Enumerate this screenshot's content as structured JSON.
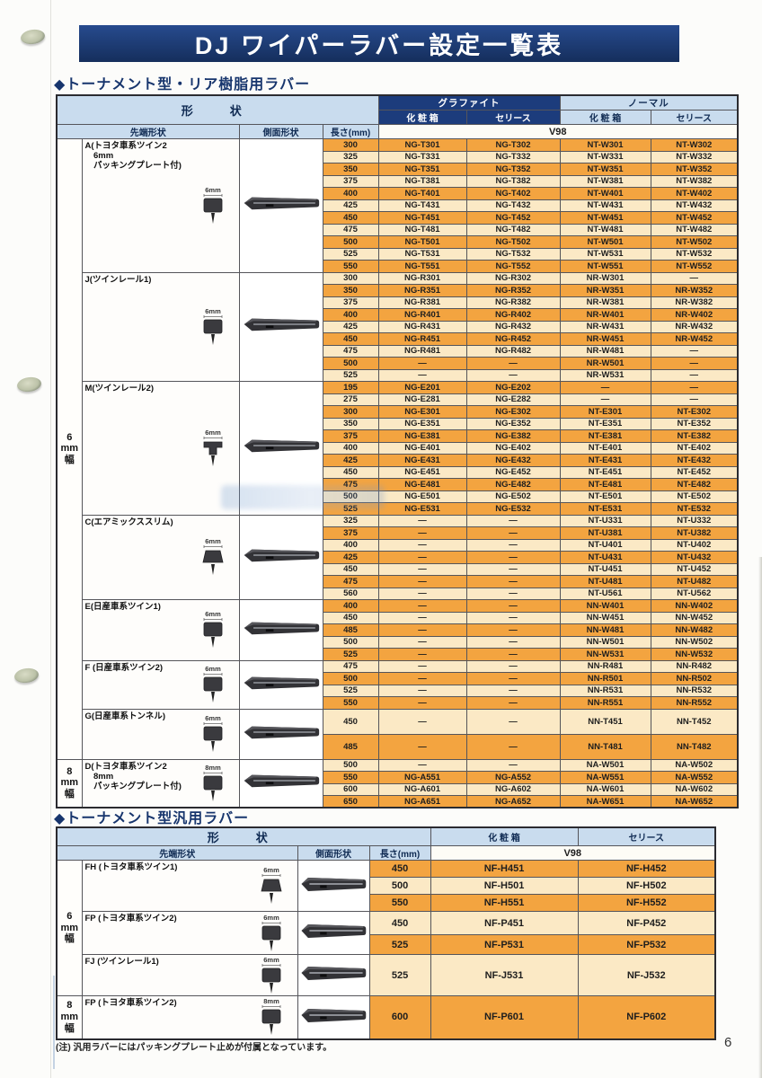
{
  "page": {
    "title": "DJ ワイパーラバー設定一覧表",
    "note": "(注) 汎用ラバーにはパッキングプレート止めが付属となっています。",
    "page_number": "6"
  },
  "colors": {
    "navy": "#1c3c7c",
    "header_blue": "#c9dcee",
    "row_orange": "#f3a440",
    "row_cream": "#fbe9c5"
  },
  "section1": {
    "heading": "◆トーナメント型・リア樹脂用ラバー",
    "headers": {
      "shape": "形　状",
      "graphite": "グラファイト",
      "normal": "ノーマル",
      "box": "化 粧 箱",
      "series": "セリース",
      "box2": "化 粧 箱",
      "series2": "セリース",
      "tip": "先端形状",
      "side": "側面形状",
      "length": "長さ(mm)",
      "v98": "V98"
    },
    "width_labels": [
      {
        "text": "6mm幅",
        "lines": [
          "6",
          "mm",
          "幅"
        ],
        "group_ids": [
          "A",
          "J",
          "M",
          "C",
          "E",
          "F",
          "G"
        ]
      },
      {
        "text": "8mm幅",
        "lines": [
          "8",
          "mm",
          "幅"
        ],
        "group_ids": [
          "D"
        ]
      }
    ],
    "groups": [
      {
        "id": "A",
        "label_lines": [
          "A(トヨタ車系ツイン2",
          "　6mm",
          "　パッキングプレート付)"
        ],
        "size_label": "6mm",
        "tip_shape": "square",
        "rows": [
          [
            "300",
            "NG-T301",
            "NG-T302",
            "NT-W301",
            "NT-W302"
          ],
          [
            "325",
            "NG-T331",
            "NG-T332",
            "NT-W331",
            "NT-W332"
          ],
          [
            "350",
            "NG-T351",
            "NG-T352",
            "NT-W351",
            "NT-W352"
          ],
          [
            "375",
            "NG-T381",
            "NG-T382",
            "NT-W381",
            "NT-W382"
          ],
          [
            "400",
            "NG-T401",
            "NG-T402",
            "NT-W401",
            "NT-W402"
          ],
          [
            "425",
            "NG-T431",
            "NG-T432",
            "NT-W431",
            "NT-W432"
          ],
          [
            "450",
            "NG-T451",
            "NG-T452",
            "NT-W451",
            "NT-W452"
          ],
          [
            "475",
            "NG-T481",
            "NG-T482",
            "NT-W481",
            "NT-W482"
          ],
          [
            "500",
            "NG-T501",
            "NG-T502",
            "NT-W501",
            "NT-W502"
          ],
          [
            "525",
            "NG-T531",
            "NG-T532",
            "NT-W531",
            "NT-W532"
          ],
          [
            "550",
            "NG-T551",
            "NG-T552",
            "NT-W551",
            "NT-W552"
          ]
        ]
      },
      {
        "id": "J",
        "label_lines": [
          "J(ツインレール1)"
        ],
        "size_label": "6mm",
        "tip_shape": "square",
        "rows": [
          [
            "300",
            "NG-R301",
            "NG-R302",
            "NR-W301",
            "—"
          ],
          [
            "350",
            "NG-R351",
            "NG-R352",
            "NR-W351",
            "NR-W352"
          ],
          [
            "375",
            "NG-R381",
            "NG-R382",
            "NR-W381",
            "NR-W382"
          ],
          [
            "400",
            "NG-R401",
            "NG-R402",
            "NR-W401",
            "NR-W402"
          ],
          [
            "425",
            "NG-R431",
            "NG-R432",
            "NR-W431",
            "NR-W432"
          ],
          [
            "450",
            "NG-R451",
            "NG-R452",
            "NR-W451",
            "NR-W452"
          ],
          [
            "475",
            "NG-R481",
            "NG-R482",
            "NR-W481",
            "—"
          ],
          [
            "500",
            "—",
            "—",
            "NR-W501",
            "—"
          ],
          [
            "525",
            "—",
            "—",
            "NR-W531",
            "—"
          ]
        ]
      },
      {
        "id": "M",
        "label_lines": [
          "M(ツインレール2)"
        ],
        "size_label": "6mm",
        "tip_shape": "tee",
        "rows": [
          [
            "195",
            "NG-E201",
            "NG-E202",
            "—",
            "—"
          ],
          [
            "275",
            "NG-E281",
            "NG-E282",
            "—",
            "—"
          ],
          [
            "300",
            "NG-E301",
            "NG-E302",
            "NT-E301",
            "NT-E302"
          ],
          [
            "350",
            "NG-E351",
            "NG-E352",
            "NT-E351",
            "NT-E352"
          ],
          [
            "375",
            "NG-E381",
            "NG-E382",
            "NT-E381",
            "NT-E382"
          ],
          [
            "400",
            "NG-E401",
            "NG-E402",
            "NT-E401",
            "NT-E402"
          ],
          [
            "425",
            "NG-E431",
            "NG-E432",
            "NT-E431",
            "NT-E432"
          ],
          [
            "450",
            "NG-E451",
            "NG-E452",
            "NT-E451",
            "NT-E452"
          ],
          [
            "475",
            "NG-E481",
            "NG-E482",
            "NT-E481",
            "NT-E482"
          ],
          [
            "500",
            "NG-E501",
            "NG-E502",
            "NT-E501",
            "NT-E502"
          ],
          [
            "525",
            "NG-E531",
            "NG-E532",
            "NT-E531",
            "NT-E532"
          ]
        ]
      },
      {
        "id": "C",
        "label_lines": [
          "C(エアミックススリム)"
        ],
        "size_label": "6mm",
        "tip_shape": "trap",
        "rows": [
          [
            "325",
            "—",
            "—",
            "NT-U331",
            "NT-U332"
          ],
          [
            "375",
            "—",
            "—",
            "NT-U381",
            "NT-U382"
          ],
          [
            "400",
            "—",
            "—",
            "NT-U401",
            "NT-U402"
          ],
          [
            "425",
            "—",
            "—",
            "NT-U431",
            "NT-U432"
          ],
          [
            "450",
            "—",
            "—",
            "NT-U451",
            "NT-U452"
          ],
          [
            "475",
            "—",
            "—",
            "NT-U481",
            "NT-U482"
          ],
          [
            "560",
            "—",
            "—",
            "NT-U561",
            "NT-U562"
          ]
        ]
      },
      {
        "id": "E",
        "label_lines": [
          "E(日産車系ツイン1)"
        ],
        "size_label": "6mm",
        "tip_shape": "square",
        "rows": [
          [
            "400",
            "—",
            "—",
            "NN-W401",
            "NN-W402"
          ],
          [
            "450",
            "—",
            "—",
            "NN-W451",
            "NN-W452"
          ],
          [
            "485",
            "—",
            "—",
            "NN-W481",
            "NN-W482"
          ],
          [
            "500",
            "—",
            "—",
            "NN-W501",
            "NN-W502"
          ],
          [
            "525",
            "—",
            "—",
            "NN-W531",
            "NN-W532"
          ]
        ]
      },
      {
        "id": "F",
        "label_lines": [
          "F (日産車系ツイン2)"
        ],
        "size_label": "6mm",
        "tip_shape": "square",
        "rows": [
          [
            "475",
            "—",
            "—",
            "NN-R481",
            "NN-R482"
          ],
          [
            "500",
            "—",
            "—",
            "NN-R501",
            "NN-R502"
          ],
          [
            "525",
            "—",
            "—",
            "NN-R531",
            "NN-R532"
          ],
          [
            "550",
            "—",
            "—",
            "NN-R551",
            "NN-R552"
          ]
        ]
      },
      {
        "id": "G",
        "label_lines": [
          "G(日産車系トンネル)"
        ],
        "size_label": "6mm",
        "tip_shape": "square",
        "rows": [
          [
            "450",
            "—",
            "—",
            "NN-T451",
            "NN-T452"
          ],
          [
            "485",
            "—",
            "—",
            "NN-T481",
            "NN-T482"
          ]
        ]
      },
      {
        "id": "D",
        "label_lines": [
          "D(トヨタ車系ツイン2",
          "　8mm",
          "　パッキングプレート付)"
        ],
        "size_label": "8mm",
        "tip_shape": "square",
        "rows": [
          [
            "500",
            "—",
            "—",
            "NA-W501",
            "NA-W502"
          ],
          [
            "550",
            "NG-A551",
            "NG-A552",
            "NA-W551",
            "NA-W552"
          ],
          [
            "600",
            "NG-A601",
            "NG-A602",
            "NA-W601",
            "NA-W602"
          ],
          [
            "650",
            "NG-A651",
            "NG-A652",
            "NA-W651",
            "NA-W652"
          ]
        ]
      }
    ]
  },
  "section2": {
    "heading": "◆トーナメント型汎用ラバー",
    "headers": {
      "shape": "形　状",
      "box": "化 粧 箱",
      "series": "セリース",
      "tip": "先端形状",
      "side": "側面形状",
      "length": "長さ(mm)",
      "v98": "V98"
    },
    "width_labels": [
      {
        "text": "6mm幅",
        "lines": [
          "6",
          "mm",
          "幅"
        ],
        "group_ids": [
          "FH",
          "FP6",
          "FJ"
        ]
      },
      {
        "text": "8mm幅",
        "lines": [
          "8",
          "mm",
          "幅"
        ],
        "group_ids": [
          "FP8"
        ]
      }
    ],
    "groups": [
      {
        "id": "FH",
        "label_lines": [
          "FH (トヨタ車系ツイン1)"
        ],
        "size_label": "6mm",
        "tip_shape": "trap",
        "rows": [
          [
            "450",
            "NF-H451",
            "NF-H452"
          ],
          [
            "500",
            "NF-H501",
            "NF-H502"
          ],
          [
            "550",
            "NF-H551",
            "NF-H552"
          ]
        ]
      },
      {
        "id": "FP6",
        "label_lines": [
          "FP (トヨタ車系ツイン2)"
        ],
        "size_label": "6mm",
        "tip_shape": "square",
        "rows": [
          [
            "450",
            "NF-P451",
            "NF-P452"
          ],
          [
            "525",
            "NF-P531",
            "NF-P532"
          ]
        ]
      },
      {
        "id": "FJ",
        "label_lines": [
          "FJ (ツインレール1)"
        ],
        "size_label": "6mm",
        "tip_shape": "square",
        "rows": [
          [
            "525",
            "NF-J531",
            "NF-J532"
          ]
        ]
      },
      {
        "id": "FP8",
        "label_lines": [
          "FP (トヨタ車系ツイン2)"
        ],
        "size_label": "8mm",
        "tip_shape": "square",
        "rows": [
          [
            "600",
            "NF-P601",
            "NF-P602"
          ]
        ]
      }
    ]
  }
}
